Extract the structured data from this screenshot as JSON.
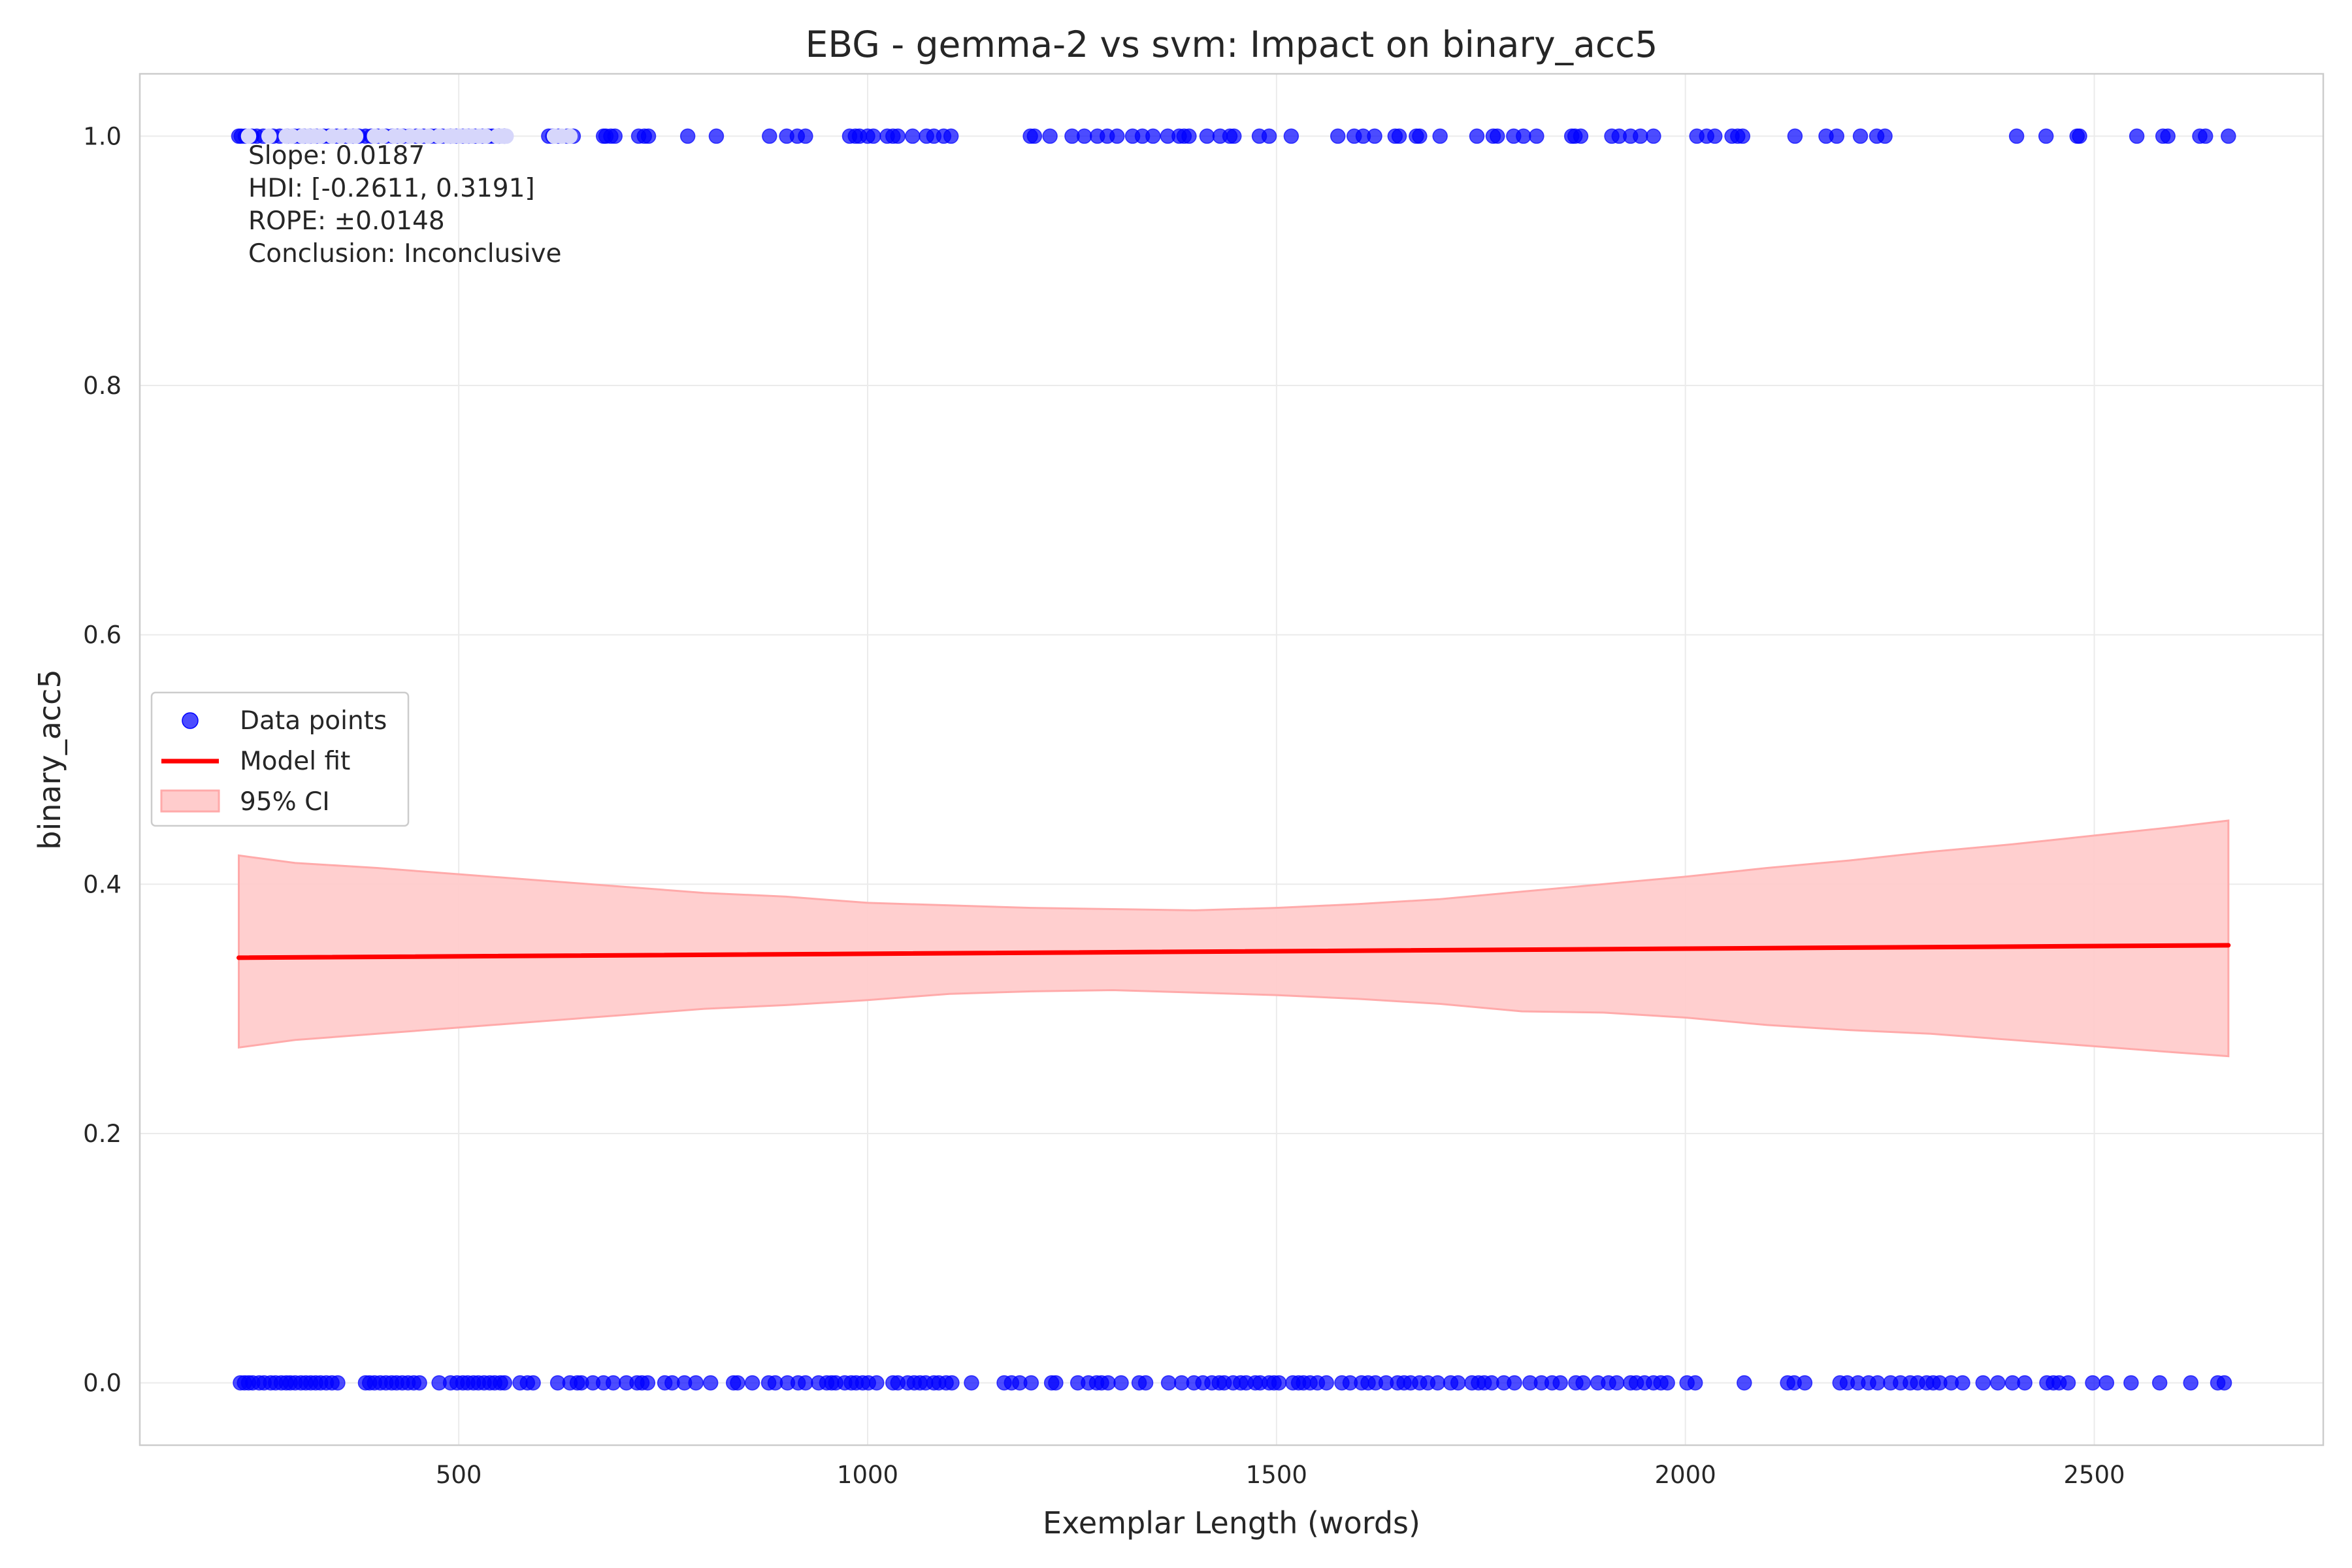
{
  "chart_data": {
    "type": "scatter",
    "title": "EBG - gemma-2 vs svm: Impact on binary_acc5",
    "xlabel": "Exemplar Length (words)",
    "ylabel": "binary_acc5",
    "xlim": [
      110,
      2780
    ],
    "ylim": [
      -0.05,
      1.05
    ],
    "xticks": [
      500,
      1000,
      1500,
      2000,
      2500
    ],
    "yticks": [
      0.0,
      0.2,
      0.4,
      0.6,
      0.8,
      1.0
    ],
    "xtick_labels": [
      "500",
      "1000",
      "1500",
      "2000",
      "2500"
    ],
    "ytick_labels": [
      "0.0",
      "0.2",
      "0.4",
      "0.6",
      "0.8",
      "1.0"
    ],
    "grid": true,
    "legend_position": "center-left",
    "legend": [
      {
        "label": "Data points",
        "kind": "marker",
        "color": "#0000ff"
      },
      {
        "label": "Model fit",
        "kind": "line",
        "color": "#ff0000"
      },
      {
        "label": "95% CI",
        "kind": "patch",
        "color": "#ffcccc"
      }
    ],
    "annotation": [
      "Slope: 0.0187",
      "HDI: [-0.2611, 0.3191]",
      "ROPE: ±0.0148",
      "Conclusion: Inconclusive"
    ],
    "points_y1": [
      231,
      234,
      239,
      247,
      253,
      261,
      273,
      281,
      290,
      299,
      305,
      311,
      318,
      326,
      335,
      341,
      351,
      362,
      371,
      378,
      386,
      393,
      401,
      411,
      419,
      425,
      432,
      440,
      448,
      457,
      466,
      472,
      480,
      490,
      497,
      505,
      512,
      520,
      529,
      536,
      541,
      549,
      556,
      610,
      615,
      622,
      633,
      640,
      677,
      680,
      686,
      691,
      720,
      727,
      732,
      780,
      815,
      880,
      901,
      914,
      924,
      978,
      985,
      990,
      1000,
      1007,
      1024,
      1031,
      1037,
      1055,
      1072,
      1081,
      1093,
      1102,
      1199,
      1204,
      1223,
      1250,
      1265,
      1281,
      1293,
      1305,
      1324,
      1336,
      1349,
      1367,
      1381,
      1387,
      1393,
      1415,
      1431,
      1443,
      1448,
      1479,
      1491,
      1518,
      1575,
      1595,
      1606,
      1620,
      1645,
      1650,
      1671,
      1675,
      1700,
      1745,
      1765,
      1770,
      1790,
      1802,
      1818,
      1861,
      1865,
      1872,
      1910,
      1919,
      1933,
      1945,
      1961,
      2014,
      2026,
      2036,
      2057,
      2064,
      2070,
      2134,
      2172,
      2185,
      2214,
      2234,
      2244,
      2405,
      2441,
      2479,
      2482,
      2552,
      2584,
      2590,
      2629,
      2636,
      2664
    ],
    "points_y1_faded": [
      243,
      268,
      289,
      296,
      309,
      316,
      323,
      331,
      345,
      356,
      367,
      374,
      397,
      407,
      421,
      429,
      441,
      452,
      463,
      476,
      487,
      493,
      501,
      509,
      516,
      525,
      533,
      547,
      553,
      558,
      617,
      626,
      636
    ],
    "points_y0": [
      233,
      238,
      243,
      248,
      256,
      262,
      270,
      276,
      283,
      289,
      294,
      300,
      307,
      313,
      319,
      325,
      331,
      338,
      345,
      352,
      386,
      391,
      397,
      404,
      411,
      418,
      424,
      431,
      438,
      445,
      452,
      476,
      490,
      498,
      505,
      511,
      518,
      524,
      531,
      538,
      544,
      551,
      556,
      575,
      584,
      591,
      621,
      636,
      645,
      650,
      664,
      677,
      689,
      705,
      718,
      724,
      731,
      752,
      761,
      776,
      790,
      808,
      836,
      841,
      859,
      879,
      887,
      902,
      915,
      924,
      940,
      950,
      956,
      961,
      972,
      980,
      986,
      994,
      1001,
      1011,
      1031,
      1037,
      1049,
      1057,
      1064,
      1071,
      1081,
      1087,
      1096,
      1103,
      1127,
      1167,
      1176,
      1186,
      1200,
      1225,
      1230,
      1257,
      1270,
      1280,
      1286,
      1294,
      1310,
      1332,
      1340,
      1368,
      1384,
      1399,
      1410,
      1421,
      1430,
      1436,
      1447,
      1456,
      1463,
      1474,
      1480,
      1491,
      1497,
      1503,
      1520,
      1527,
      1533,
      1541,
      1550,
      1561,
      1580,
      1590,
      1604,
      1612,
      1621,
      1634,
      1648,
      1656,
      1664,
      1675,
      1685,
      1697,
      1713,
      1722,
      1739,
      1747,
      1754,
      1763,
      1778,
      1791,
      1810,
      1824,
      1837,
      1847,
      1866,
      1875,
      1893,
      1906,
      1916,
      1933,
      1940,
      1950,
      1961,
      1970,
      1978,
      2002,
      2012,
      2072,
      2125,
      2133,
      2146,
      2189,
      2198,
      2211,
      2224,
      2235,
      2251,
      2263,
      2275,
      2284,
      2295,
      2303,
      2311,
      2325,
      2339,
      2364,
      2382,
      2400,
      2415,
      2442,
      2450,
      2457,
      2468,
      2498,
      2515,
      2545,
      2580,
      2618,
      2651,
      2659
    ],
    "fit": {
      "x": [
        231,
        2664
      ],
      "y": [
        0.341,
        0.351
      ]
    },
    "ci": {
      "x": [
        231,
        300,
        400,
        500,
        600,
        700,
        800,
        900,
        1000,
        1100,
        1200,
        1300,
        1400,
        1500,
        1600,
        1700,
        1800,
        1900,
        2000,
        2100,
        2200,
        2300,
        2400,
        2500,
        2600,
        2664
      ],
      "upper": [
        0.423,
        0.417,
        0.413,
        0.408,
        0.403,
        0.398,
        0.393,
        0.39,
        0.385,
        0.383,
        0.381,
        0.38,
        0.379,
        0.381,
        0.384,
        0.388,
        0.394,
        0.4,
        0.406,
        0.413,
        0.419,
        0.426,
        0.432,
        0.439,
        0.446,
        0.451
      ],
      "lower": [
        0.269,
        0.275,
        0.28,
        0.285,
        0.29,
        0.295,
        0.3,
        0.303,
        0.307,
        0.312,
        0.314,
        0.315,
        0.313,
        0.311,
        0.308,
        0.304,
        0.298,
        0.297,
        0.293,
        0.287,
        0.283,
        0.28,
        0.275,
        0.27,
        0.265,
        0.262
      ]
    },
    "colors": {
      "points": "#0000ff",
      "points_faded": "#d6d6fb",
      "fit": "#ff0000",
      "ci_fill": "#ffcccc",
      "ci_edge": "#ffaaaa",
      "grid": "#ebebeb",
      "spine": "#cccccc"
    }
  }
}
